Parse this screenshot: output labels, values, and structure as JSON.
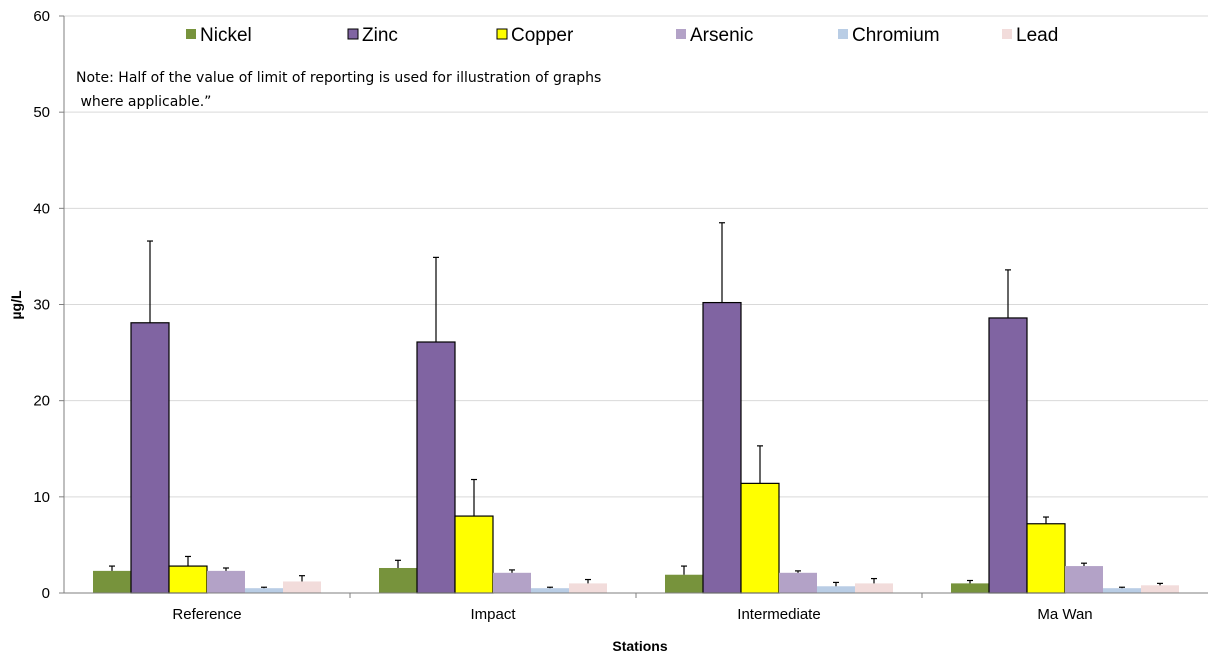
{
  "chart_data": {
    "type": "bar",
    "categories": [
      "Reference",
      "Impact",
      "Intermediate",
      "Ma Wan"
    ],
    "series": [
      {
        "name": "Nickel",
        "color": "#77933c",
        "border": false,
        "values": [
          2.3,
          2.6,
          1.9,
          1.0
        ],
        "errors": [
          0.5,
          0.8,
          0.9,
          0.3
        ]
      },
      {
        "name": "Zinc",
        "color": "#8064a2",
        "border": true,
        "values": [
          28.1,
          26.1,
          30.2,
          28.6
        ],
        "errors": [
          8.5,
          8.8,
          8.3,
          5.0
        ]
      },
      {
        "name": "Copper",
        "color": "#ffff00",
        "border": true,
        "values": [
          2.8,
          8.0,
          11.4,
          7.2
        ],
        "errors": [
          1.0,
          3.8,
          3.9,
          0.7
        ]
      },
      {
        "name": "Arsenic",
        "color": "#b3a2c7",
        "border": false,
        "values": [
          2.3,
          2.1,
          2.1,
          2.8
        ],
        "errors": [
          0.3,
          0.3,
          0.2,
          0.3
        ]
      },
      {
        "name": "Chromium",
        "color": "#b9cde5",
        "border": false,
        "values": [
          0.5,
          0.5,
          0.7,
          0.5
        ],
        "errors": [
          0.1,
          0.1,
          0.4,
          0.1
        ]
      },
      {
        "name": "Lead",
        "color": "#f2dcdb",
        "border": false,
        "values": [
          1.2,
          1.0,
          1.0,
          0.8
        ],
        "errors": [
          0.6,
          0.4,
          0.5,
          0.2
        ]
      }
    ],
    "xlabel": "Stations",
    "ylabel": "µg/L",
    "ylim": [
      0,
      60
    ],
    "yticks": [
      0,
      10,
      20,
      30,
      40,
      50,
      60
    ],
    "grid": true,
    "legend_position": "top",
    "error_bars": true,
    "note_lines": [
      "Note: Half of the value of limit of reporting is used for illustration of graphs",
      " where applicable.”"
    ]
  }
}
